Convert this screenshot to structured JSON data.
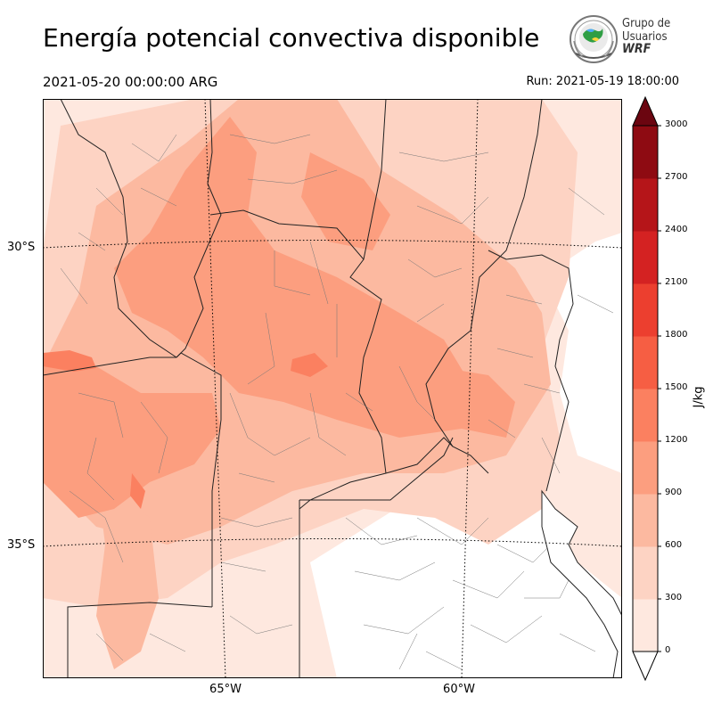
{
  "title": "Energía potencial convectiva disponible",
  "valid_time": "2021-05-20 00:00:00 ARG",
  "run_time": "Run: 2021-05-19 18:00:00",
  "logo": {
    "line1": "Grupo de",
    "line2": "Usuarios",
    "line3": "WRF",
    "icon": "wrf-globe-icon"
  },
  "lat_labels": [
    "30°S",
    "35°S"
  ],
  "lon_labels": [
    "65°W",
    "60°W"
  ],
  "colorbar": {
    "unit": "J/kg",
    "ticks": [
      "0",
      "300",
      "600",
      "900",
      "1200",
      "1500",
      "1800",
      "2100",
      "2400",
      "2700",
      "3000"
    ],
    "colors": [
      "#fee8df",
      "#fdd3c3",
      "#fcb9a0",
      "#fc9e7f",
      "#fb8060",
      "#f65e43",
      "#ec3f2f",
      "#d42222",
      "#b51519",
      "#8e0b12",
      "#6b0510"
    ],
    "extend": "both"
  },
  "field_colors": {
    "low": "#fee8df",
    "light": "#fdd3c3",
    "medium": "#fcb9a0",
    "strong": "#fc9e7f",
    "peak": "#fb8060",
    "none": "#ffffff"
  }
}
